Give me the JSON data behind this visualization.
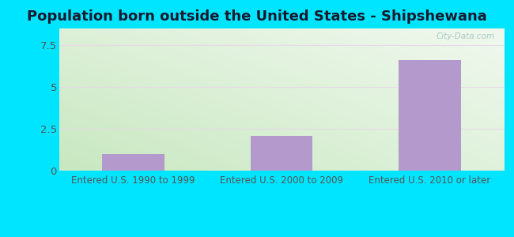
{
  "title": "Population born outside the United States - Shipshewana",
  "categories": [
    "Entered U.S. 1990 to 1999",
    "Entered U.S. 2000 to 2009",
    "Entered U.S. 2010 or later"
  ],
  "values": [
    1.0,
    2.1,
    6.6
  ],
  "bar_color": "#b399cc",
  "ylim": [
    0,
    8.5
  ],
  "yticks": [
    0,
    2.5,
    5,
    7.5
  ],
  "background_outer": "#00e5ff",
  "bg_color_topleft": "#ddf0d8",
  "bg_color_topright": "#f0f8ee",
  "bg_color_bottomleft": "#c8e8c0",
  "bg_color_bottomright": "#e0f2dc",
  "title_fontsize": 13,
  "tick_fontsize": 9.5,
  "label_fontsize": 8.5,
  "watermark": "City-Data.com"
}
